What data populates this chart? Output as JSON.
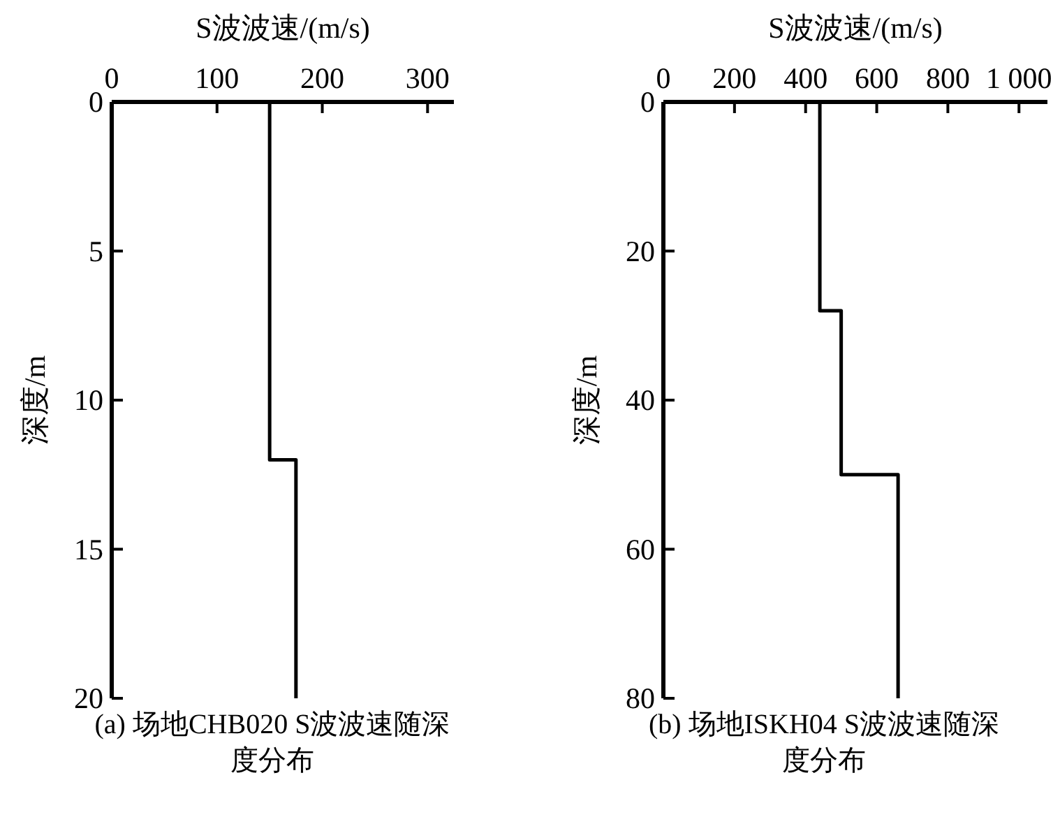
{
  "chart_data": [
    {
      "type": "line",
      "title": "(a) 场地CHB020 S波波速随深度分布",
      "xlabel": "S波波速/(m/s)",
      "ylabel": "深度/m",
      "color": "#000000",
      "x": [
        150,
        150,
        175,
        175
      ],
      "values": [
        0,
        12,
        12,
        20
      ],
      "xlim": [
        0,
        325
      ],
      "xticks": [
        0,
        100,
        200,
        300
      ],
      "ylim": [
        20,
        0
      ],
      "yticks": [
        0,
        5,
        10,
        15,
        20
      ]
    },
    {
      "type": "line",
      "title": "(b) 场地ISKH04 S波波速随深度分布",
      "xlabel": "S波波速/(m/s)",
      "ylabel": "深度/m",
      "color": "#000000",
      "x": [
        440,
        440,
        500,
        500,
        660,
        660
      ],
      "values": [
        0,
        28,
        28,
        50,
        50,
        80
      ],
      "xlim": [
        0,
        1080
      ],
      "xticks": [
        0,
        200,
        400,
        600,
        800,
        {
          "value": 1000,
          "label": "1 000"
        }
      ],
      "ylim": [
        80,
        0
      ],
      "yticks": [
        0,
        20,
        40,
        60,
        80
      ]
    }
  ]
}
